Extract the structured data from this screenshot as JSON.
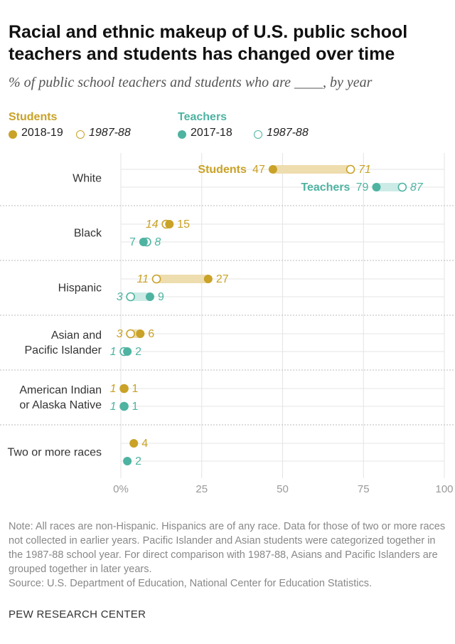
{
  "title": "Racial and ethnic makeup of U.S. public school teachers and students has changed over time",
  "subtitle": "% of public school teachers and students who are ____, by year",
  "legend": {
    "students": {
      "title": "Students",
      "recent": "2018-19",
      "past": "1987-88"
    },
    "teachers": {
      "title": "Teachers",
      "recent": "2017-18",
      "past": "1987-88"
    }
  },
  "colors": {
    "students": "#C9A227",
    "students_band": "#EEDDAE",
    "teachers": "#4EB3A1",
    "teachers_band": "#CDEBE6",
    "label_dark": "#333333"
  },
  "chart_data": {
    "type": "dot-range",
    "xlim": [
      0,
      100
    ],
    "ticks": [
      0,
      25,
      50,
      75,
      100
    ],
    "tick_labels": [
      "0%",
      "25",
      "50",
      "75",
      "100"
    ],
    "inline_labels": {
      "students": "Students",
      "teachers": "Teachers"
    },
    "groups": [
      {
        "label": [
          "White"
        ],
        "students": {
          "recent": 47,
          "past": 71
        },
        "teachers": {
          "recent": 79,
          "past": 87
        }
      },
      {
        "label": [
          "Black"
        ],
        "students": {
          "recent": 15,
          "past": 14
        },
        "teachers": {
          "recent": 7,
          "past": 8
        }
      },
      {
        "label": [
          "Hispanic"
        ],
        "students": {
          "recent": 27,
          "past": 11
        },
        "teachers": {
          "recent": 9,
          "past": 3
        }
      },
      {
        "label": [
          "Asian and",
          "Pacific Islander"
        ],
        "students": {
          "recent": 6,
          "past": 3
        },
        "teachers": {
          "recent": 2,
          "past": 1
        }
      },
      {
        "label": [
          "American Indian",
          "or Alaska Native"
        ],
        "students": {
          "recent": 1,
          "past": 1
        },
        "teachers": {
          "recent": 1,
          "past": 1
        }
      },
      {
        "label": [
          "Two or more races"
        ],
        "students": {
          "recent": 4,
          "past": null
        },
        "teachers": {
          "recent": 2,
          "past": null
        }
      }
    ]
  },
  "note": "Note: All races are non-Hispanic. Hispanics are of any race. Data for those of two or more races not collected in earlier years. Pacific Islander and Asian students were categorized together in the 1987-88 school year. For direct comparison with 1987-88, Asians and Pacific Islanders are grouped together in later years.",
  "source": "Source: U.S. Department of Education, National Center for Education Statistics.",
  "credit": "PEW RESEARCH CENTER"
}
